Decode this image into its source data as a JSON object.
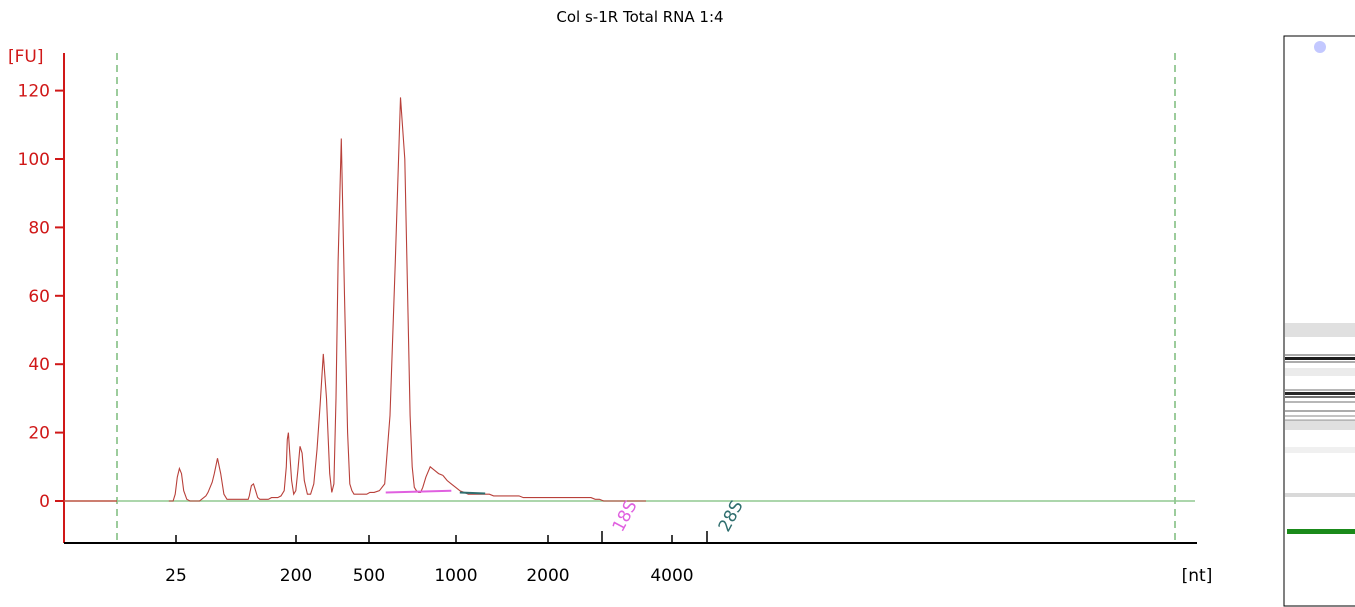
{
  "chart_data": {
    "type": "line",
    "title": "Col s-1R Total RNA 1:4",
    "ylabel": "[FU]",
    "xlabel": "[nt]",
    "ylim": [
      -12,
      132
    ],
    "y_ticks": [
      0,
      20,
      40,
      60,
      80,
      100,
      120
    ],
    "x_tick_labels": [
      "25",
      "200",
      "500",
      "1000",
      "2000",
      "4000"
    ],
    "x_marker_labels": [
      "18S",
      "28S"
    ],
    "series": [
      {
        "color": "#b8403a",
        "x": [
          49,
          53,
          55,
          57,
          59,
          61,
          63,
          66,
          69,
          72,
          74,
          76,
          78,
          80,
          82,
          84,
          86,
          88,
          90,
          92,
          95,
          98,
          101,
          104,
          107,
          110,
          113,
          116,
          119,
          122,
          124,
          125,
          126,
          127,
          129,
          131,
          133,
          135,
          137,
          140,
          143,
          146,
          149,
          152,
          155,
          158,
          160,
          161,
          162,
          163,
          165,
          167,
          169,
          171,
          173,
          175,
          177,
          180,
          183,
          186,
          189,
          192,
          195,
          198,
          201,
          203,
          205,
          207,
          209,
          212,
          215,
          218,
          220,
          222,
          224,
          226,
          228,
          230,
          232,
          234,
          236,
          239,
          243,
          248,
          253,
          258,
          263,
          268,
          272,
          275,
          277,
          279,
          281,
          283,
          285,
          287,
          289,
          292,
          296,
          300,
          304,
          308
        ],
        "y": [
          0,
          0,
          2,
          7,
          9.5,
          8,
          3,
          0.5,
          0,
          0,
          0,
          0,
          0,
          0.5,
          1,
          1.5,
          2.5,
          4,
          5.5,
          8,
          12.5,
          8,
          2,
          0.5,
          0.5,
          0.5,
          0.5,
          0.5,
          0.5,
          0.5,
          0.5,
          1.5,
          3,
          4.5,
          5,
          3,
          1,
          0.5,
          0.5,
          0.5,
          0.5,
          1,
          1,
          1,
          1.5,
          3,
          10,
          18,
          20,
          15,
          6,
          2,
          3,
          9,
          16,
          14,
          6,
          2,
          2,
          5,
          15,
          28,
          43,
          30,
          8,
          2.5,
          5,
          30,
          70,
          106,
          60,
          20,
          5,
          3,
          2,
          2,
          2,
          2,
          2,
          2,
          2,
          2.5,
          2.5,
          3,
          5,
          25,
          70,
          118,
          100,
          55,
          25,
          10,
          4,
          3,
          2.5,
          2.5,
          4,
          7,
          10,
          9,
          8,
          7.5
        ]
      },
      {
        "color": "#b8403a",
        "x": [
          308,
          312,
          316,
          320,
          324,
          328,
          332,
          336,
          340,
          344,
          348,
          352,
          356,
          360,
          364,
          368,
          372,
          376,
          380,
          384,
          388,
          392,
          396,
          400,
          404,
          408,
          412,
          416,
          420,
          424,
          428,
          432,
          436,
          440,
          444,
          448,
          452,
          456,
          460,
          470,
          500
        ],
        "y": [
          7.5,
          6,
          5,
          4,
          3,
          2.5,
          2,
          2,
          2,
          2,
          2,
          2,
          1.5,
          1.5,
          1.5,
          1.5,
          1.5,
          1.5,
          1.5,
          1,
          1,
          1,
          1,
          1,
          1,
          1,
          1,
          1,
          1,
          1,
          1,
          1,
          1,
          1,
          1,
          1,
          0.5,
          0.5,
          0,
          0,
          0
        ]
      },
      {
        "name": "",
        "color": "#90c890",
        "x": [
          0,
          1000
        ],
        "y": [
          0,
          0
        ]
      }
    ],
    "regions": [
      {
        "label": "18S",
        "color": "#e060e0",
        "x": [
          254,
          316
        ],
        "y": [
          2.5,
          3
        ]
      },
      {
        "label": "28S",
        "color": "#2f6e6e",
        "x": [
          324,
          348
        ],
        "y": [
          2.5,
          2.2
        ]
      }
    ],
    "gridlines": false
  },
  "gel": {
    "marker_color": "#1a8a1a",
    "band_color": "#111111",
    "top_marker_color": "#aab0ff"
  }
}
